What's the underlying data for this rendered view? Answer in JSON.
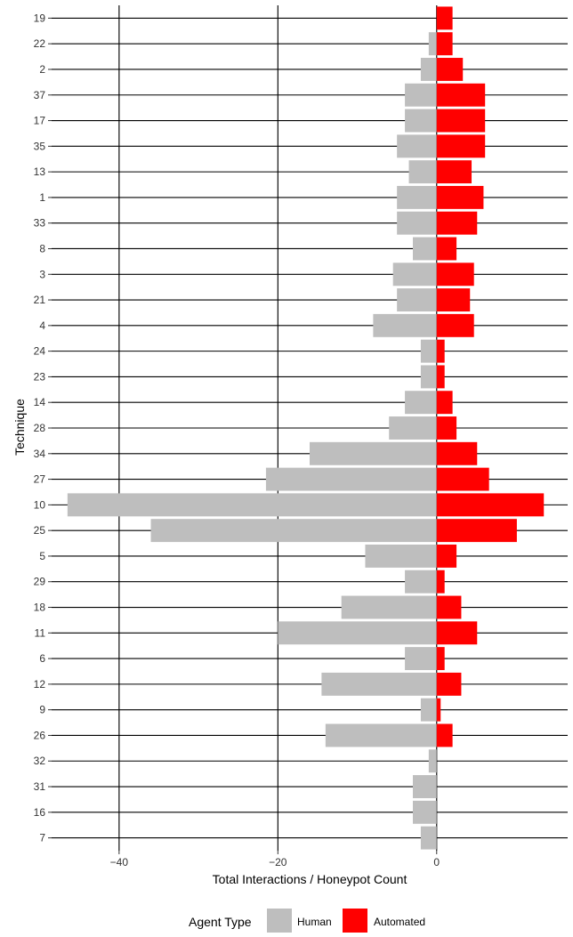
{
  "chart_data": {
    "type": "bar",
    "orientation": "horizontal",
    "title": "",
    "xlabel": "Total Interactions / Honeypot Count",
    "ylabel": "Technique",
    "xlim": [
      -48.5,
      16.5
    ],
    "xticks": [
      -40,
      -20,
      0
    ],
    "xtick_labels": [
      "−40",
      "−20",
      "0"
    ],
    "grid": true,
    "legend_position": "bottom",
    "legend": {
      "title": "Agent Type",
      "items": [
        {
          "name": "Human",
          "color": "#BEBEBE"
        },
        {
          "name": "Automated",
          "color": "#FF0000"
        }
      ]
    },
    "categories": [
      "19",
      "22",
      "2",
      "37",
      "17",
      "35",
      "13",
      "1",
      "33",
      "8",
      "3",
      "21",
      "4",
      "24",
      "23",
      "14",
      "28",
      "34",
      "27",
      "10",
      "25",
      "5",
      "29",
      "18",
      "11",
      "6",
      "12",
      "9",
      "26",
      "32",
      "31",
      "16",
      "7"
    ],
    "series": [
      {
        "name": "Human",
        "color": "#BEBEBE",
        "values": [
          0,
          -1,
          -2,
          -4,
          -4,
          -5,
          -3.5,
          -5,
          -5,
          -3,
          -5.5,
          -5,
          -8,
          -2,
          -2,
          -4,
          -6,
          -16,
          -21.5,
          -46.5,
          -36,
          -9,
          -4,
          -12,
          -20,
          -4,
          -14.5,
          -2,
          -14,
          -1,
          -3,
          -3,
          -2
        ]
      },
      {
        "name": "Automated",
        "color": "#FF0000",
        "values": [
          2,
          2,
          3.3,
          6.1,
          6.1,
          6.1,
          4.4,
          5.9,
          5.1,
          2.5,
          4.7,
          4.2,
          4.7,
          1,
          1,
          2,
          2.5,
          5.1,
          6.6,
          13.5,
          10.1,
          2.5,
          1,
          3.1,
          5.1,
          1,
          3.1,
          0.5,
          2,
          0,
          0,
          0,
          0
        ]
      }
    ]
  }
}
